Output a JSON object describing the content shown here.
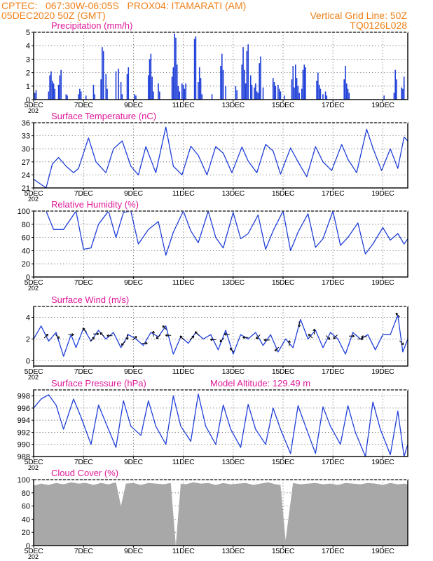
{
  "header": {
    "line1_left": "CPTEC:   067:30W-06:05S   PROX04: ITAMARATI (AM)",
    "line2_left": "05DEC2020 50Z (GMT)",
    "line2_right": "Vertical Grid Line: 50Z",
    "line3_right": "TQ0126L028",
    "color": "#f08018"
  },
  "colors": {
    "title": "#e0189a",
    "series": "#1f3fd8",
    "cloud": "#a8a8a8",
    "grid": "#555555"
  },
  "x_axis": {
    "tick_labels": [
      "5DEC",
      "7DEC",
      "9DEC",
      "11DEC",
      "13DEC",
      "15DEC",
      "17DEC",
      "19DEC"
    ],
    "tick_days": [
      5,
      7,
      9,
      11,
      13,
      15,
      17,
      19
    ],
    "range_days": [
      5,
      20
    ],
    "clipped_year_label": "202"
  },
  "chart_data": [
    {
      "id": "precip",
      "type": "bar",
      "title": "Precipitation (mm/h)",
      "ylim": [
        0,
        5
      ],
      "yticks": [
        "0",
        "1",
        "2",
        "3",
        "4",
        "5"
      ],
      "x": [
        5.05,
        5.1,
        5.6,
        5.65,
        5.7,
        5.75,
        5.8,
        5.85,
        6.0,
        6.05,
        6.1,
        6.3,
        6.35,
        6.8,
        6.85,
        6.9,
        7.1,
        7.4,
        7.45,
        7.7,
        7.75,
        7.8,
        7.9,
        7.95,
        8.3,
        8.4,
        8.5,
        8.55,
        8.75,
        8.8,
        9.05,
        9.1,
        9.6,
        9.65,
        9.7,
        9.75,
        9.8,
        10.0,
        10.05,
        10.55,
        10.6,
        10.65,
        10.7,
        10.75,
        10.8,
        10.85,
        10.95,
        11.0,
        11.05,
        11.1,
        11.45,
        11.5,
        11.6,
        11.65,
        11.7,
        11.75,
        12.15,
        12.5,
        12.55,
        12.6,
        12.7,
        13.1,
        13.15,
        13.35,
        13.4,
        13.45,
        13.5,
        13.55,
        13.6,
        13.7,
        13.75,
        13.85,
        13.9,
        13.95,
        14.0,
        14.05,
        14.1,
        14.2,
        14.6,
        14.65,
        14.7,
        14.8,
        14.85,
        14.9,
        15.05,
        15.35,
        15.4,
        15.45,
        15.5,
        15.55,
        15.6,
        15.65,
        15.75,
        15.8,
        15.85,
        15.9,
        16.35,
        16.4,
        16.45,
        16.5,
        16.6,
        16.7,
        16.75,
        17.45,
        17.5,
        17.55,
        17.6,
        17.65,
        19.05,
        19.45,
        19.5,
        19.55,
        19.75,
        19.8,
        19.85
      ],
      "values": [
        0.5,
        0.7,
        0.6,
        1.8,
        2.1,
        1.4,
        1.2,
        0.8,
        1.1,
        1.8,
        2.2,
        0.4,
        0.3,
        0.4,
        0.8,
        0.6,
        0.3,
        1.1,
        0.4,
        1.5,
        3.9,
        3.6,
        1.9,
        0.8,
        2.1,
        2.3,
        1.3,
        0.4,
        1.9,
        2.4,
        0.4,
        0.3,
        1.8,
        3.0,
        3.4,
        1.7,
        0.6,
        1.2,
        0.6,
        1.7,
        2.4,
        4.9,
        4.6,
        2.6,
        1.0,
        0.6,
        1.2,
        1.1,
        0.8,
        1.2,
        4.5,
        4.7,
        1.3,
        2.4,
        1.6,
        0.4,
        0.4,
        2.5,
        3.4,
        2.2,
        1.0,
        1.0,
        0.7,
        2.6,
        3.9,
        2.2,
        1.2,
        3.6,
        4.1,
        1.8,
        1.1,
        0.9,
        1.2,
        0.6,
        0.5,
        2.7,
        3.2,
        0.9,
        1.6,
        1.3,
        1.0,
        1.1,
        0.8,
        0.6,
        0.3,
        1.5,
        2.5,
        0.9,
        2.6,
        1.6,
        1.0,
        0.5,
        0.8,
        2.2,
        2.6,
        2.4,
        1.4,
        2.0,
        1.1,
        0.8,
        0.4,
        0.6,
        0.3,
        1.5,
        2.5,
        1.2,
        0.8,
        0.5,
        0.3,
        0.5,
        2.2,
        1.5,
        0.9,
        0.8,
        1.7
      ],
      "bar_width_days": 0.035
    },
    {
      "id": "temp",
      "type": "line",
      "title": "Surface Temperature (nC)",
      "ylim": [
        21,
        36
      ],
      "yticks": [
        "21",
        "24",
        "27",
        "30",
        "33",
        "36"
      ],
      "x": [
        5.0,
        5.3,
        5.5,
        5.75,
        6.0,
        6.3,
        6.6,
        6.8,
        7.2,
        7.5,
        7.9,
        8.2,
        8.55,
        8.9,
        9.2,
        9.5,
        9.9,
        10.3,
        10.6,
        10.95,
        11.3,
        11.6,
        11.95,
        12.3,
        12.6,
        12.95,
        13.35,
        13.6,
        13.95,
        14.3,
        14.6,
        14.9,
        15.3,
        15.6,
        15.95,
        16.3,
        16.6,
        16.95,
        17.35,
        17.6,
        17.95,
        18.35,
        18.6,
        18.95,
        19.3,
        19.6,
        19.85,
        20.0
      ],
      "values": [
        23.0,
        21.8,
        21.0,
        26.5,
        28.0,
        26.0,
        24.5,
        25.5,
        32.5,
        27.0,
        24.5,
        30.0,
        31.8,
        26.0,
        24.0,
        30.5,
        24.5,
        35.0,
        26.0,
        24.0,
        30.6,
        28.5,
        24.0,
        30.5,
        29.0,
        24.5,
        30.4,
        27.2,
        24.5,
        31.0,
        29.5,
        24.2,
        30.2,
        27.0,
        23.6,
        30.5,
        27.0,
        25.0,
        31.0,
        27.6,
        24.5,
        34.5,
        30.2,
        25.0,
        30.0,
        25.5,
        32.7,
        31.8
      ],
      "series_name": ""
    },
    {
      "id": "rh",
      "type": "line",
      "title": "Relative Humidity (%)",
      "ylim": [
        0,
        100
      ],
      "yticks": [
        "0",
        "20",
        "40",
        "60",
        "80",
        "100"
      ],
      "x": [
        5.0,
        5.5,
        5.8,
        6.2,
        6.7,
        7.0,
        7.3,
        7.6,
        8.0,
        8.3,
        8.6,
        8.9,
        9.2,
        9.6,
        10.0,
        10.3,
        10.6,
        11.0,
        11.3,
        11.6,
        12.0,
        12.3,
        12.6,
        13.0,
        13.3,
        13.6,
        14.0,
        14.3,
        14.6,
        15.0,
        15.3,
        15.6,
        16.0,
        16.3,
        16.6,
        17.0,
        17.3,
        17.6,
        18.0,
        18.3,
        18.6,
        19.0,
        19.3,
        19.6,
        19.85,
        20.0
      ],
      "values": [
        100,
        100,
        72,
        72,
        100,
        42,
        44,
        80,
        100,
        60,
        98,
        100,
        50,
        72,
        84,
        33,
        68,
        100,
        70,
        52,
        100,
        60,
        44,
        98,
        58,
        66,
        94,
        42,
        70,
        100,
        40,
        68,
        96,
        45,
        58,
        100,
        48,
        60,
        82,
        35,
        50,
        75,
        56,
        66,
        50,
        58
      ],
      "series_name": ""
    },
    {
      "id": "wind",
      "type": "line",
      "title": "Surface Wind (m/s)",
      "ylim": [
        -0.5,
        5
      ],
      "yticks": [
        "0",
        "2",
        "4"
      ],
      "x": [
        5.0,
        5.3,
        5.6,
        5.9,
        6.2,
        6.5,
        6.7,
        7.0,
        7.3,
        7.6,
        7.9,
        8.2,
        8.5,
        8.8,
        9.1,
        9.4,
        9.7,
        10.0,
        10.3,
        10.6,
        10.9,
        11.2,
        11.5,
        11.8,
        12.1,
        12.4,
        12.7,
        13.0,
        13.3,
        13.6,
        13.9,
        14.2,
        14.5,
        14.8,
        15.1,
        15.4,
        15.7,
        16.0,
        16.3,
        16.6,
        16.9,
        17.2,
        17.5,
        17.8,
        18.1,
        18.4,
        18.7,
        19.0,
        19.3,
        19.6,
        19.8,
        20.0
      ],
      "values": [
        2.0,
        3.2,
        1.8,
        2.6,
        0.4,
        2.4,
        1.2,
        3.0,
        1.8,
        2.8,
        2.0,
        2.6,
        1.2,
        2.4,
        2.0,
        1.4,
        2.6,
        2.2,
        3.2,
        0.6,
        2.2,
        1.6,
        2.6,
        2.0,
        2.4,
        1.0,
        2.8,
        0.6,
        2.4,
        2.0,
        2.6,
        1.4,
        2.4,
        0.8,
        2.0,
        1.2,
        3.8,
        2.0,
        2.8,
        1.2,
        2.6,
        2.0,
        0.6,
        2.6,
        2.0,
        2.4,
        1.0,
        2.4,
        2.4,
        4.2,
        0.8,
        2.0
      ],
      "arrows_x": [
        5.5,
        5.95,
        6.5,
        7.05,
        7.35,
        7.5,
        7.75,
        8.05,
        8.6,
        8.75,
        9.05,
        9.45,
        9.8,
        10.0,
        10.25,
        10.4,
        10.95,
        11.35,
        11.55,
        12.2,
        12.55,
        12.75,
        12.95,
        13.5,
        14.0,
        14.35,
        14.75,
        15.25,
        15.65,
        16.1,
        16.25,
        16.8,
        17.1,
        17.75,
        18.1,
        18.25,
        19.6,
        19.75
      ],
      "arrows_dir": [
        45,
        135,
        90,
        315,
        45,
        90,
        315,
        270,
        225,
        180,
        45,
        90,
        0,
        225,
        315,
        270,
        315,
        45,
        315,
        270,
        225,
        270,
        315,
        270,
        225,
        270,
        225,
        0,
        180,
        315,
        0,
        135,
        225,
        90,
        90,
        270,
        315,
        135
      ],
      "arrow_len_days": 0.22
    },
    {
      "id": "psfc",
      "type": "line",
      "title": "Surface Pressure (hPa)",
      "annotation": "Model Altitude: 129.49  m",
      "ylim": [
        988,
        999
      ],
      "yticks": [
        "988",
        "990",
        "992",
        "994",
        "996",
        "998"
      ],
      "x": [
        5.0,
        5.3,
        5.6,
        5.9,
        6.2,
        6.6,
        6.9,
        7.3,
        7.6,
        7.9,
        8.3,
        8.6,
        8.9,
        9.3,
        9.6,
        9.9,
        10.3,
        10.6,
        10.9,
        11.3,
        11.6,
        11.9,
        12.3,
        12.6,
        12.9,
        13.3,
        13.6,
        13.9,
        14.3,
        14.6,
        14.9,
        15.3,
        15.6,
        15.9,
        16.3,
        16.6,
        16.9,
        17.3,
        17.6,
        17.9,
        18.3,
        18.6,
        18.9,
        19.3,
        19.6,
        19.85,
        20.0
      ],
      "values": [
        996.0,
        997.5,
        998.2,
        996.5,
        992.5,
        997.5,
        994.5,
        990.0,
        996.5,
        993.5,
        989.5,
        997.2,
        993.0,
        991.5,
        997.2,
        993.0,
        990.0,
        998.0,
        993.0,
        990.5,
        998.3,
        993.0,
        990.0,
        996.5,
        992.5,
        989.5,
        996.6,
        992.5,
        990.0,
        996.0,
        992.5,
        988.5,
        996.4,
        993.0,
        988.5,
        996.2,
        993.0,
        990.0,
        996.4,
        992.0,
        988.0,
        997.0,
        992.5,
        988.3,
        995.5,
        988.0,
        990.0
      ],
      "series_name": ""
    },
    {
      "id": "cloud",
      "type": "area",
      "title": "Cloud Cover (%)",
      "ylim": [
        0,
        100
      ],
      "yticks": [
        "0",
        "20",
        "40",
        "60",
        "80",
        "100"
      ],
      "x": [
        5.0,
        5.3,
        5.6,
        5.9,
        6.2,
        6.5,
        6.8,
        7.1,
        7.4,
        7.7,
        8.0,
        8.3,
        8.5,
        8.7,
        9.0,
        9.3,
        9.6,
        9.9,
        10.2,
        10.5,
        10.7,
        10.9,
        11.1,
        11.4,
        11.7,
        12.0,
        12.3,
        12.6,
        12.9,
        13.2,
        13.5,
        13.8,
        14.1,
        14.4,
        14.7,
        14.9,
        15.1,
        15.4,
        15.7,
        16.0,
        16.3,
        16.6,
        16.9,
        17.2,
        17.5,
        17.8,
        18.1,
        18.4,
        18.7,
        19.0,
        19.3,
        19.6,
        19.9,
        20.0
      ],
      "values": [
        91,
        94,
        92,
        95,
        93,
        96,
        94,
        95,
        92,
        95,
        93,
        96,
        60,
        94,
        95,
        92,
        95,
        94,
        93,
        95,
        0,
        94,
        93,
        96,
        94,
        95,
        92,
        95,
        93,
        94,
        95,
        92,
        94,
        96,
        93,
        92,
        8,
        95,
        93,
        94,
        95,
        93,
        94,
        92,
        95,
        94,
        93,
        95,
        94,
        92,
        95,
        93,
        94,
        92
      ]
    }
  ]
}
